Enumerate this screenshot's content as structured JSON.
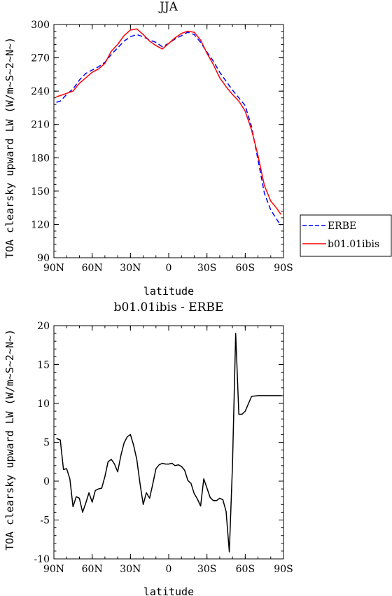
{
  "chart_data": [
    {
      "type": "line",
      "title": "JJA",
      "xlabel": "latitude",
      "ylabel": "TOA clearsky upward LW (W/m~S~2~N~)",
      "xlim": [
        90,
        -90
      ],
      "ylim": [
        90,
        300
      ],
      "x_ticks": [
        {
          "value": 90,
          "label": "90N"
        },
        {
          "value": 60,
          "label": "60N"
        },
        {
          "value": 30,
          "label": "30N"
        },
        {
          "value": 0,
          "label": "0"
        },
        {
          "value": -30,
          "label": "30S"
        },
        {
          "value": -60,
          "label": "60S"
        },
        {
          "value": -90,
          "label": "90S"
        }
      ],
      "y_ticks": [
        {
          "value": 300,
          "label": "300"
        },
        {
          "value": 270,
          "label": "270"
        },
        {
          "value": 240,
          "label": "240"
        },
        {
          "value": 210,
          "label": "210"
        },
        {
          "value": 180,
          "label": "180"
        },
        {
          "value": 150,
          "label": "150"
        },
        {
          "value": 120,
          "label": "120"
        },
        {
          "value": 90,
          "label": "90"
        }
      ],
      "legend_position": "right",
      "series": [
        {
          "name": "ERBE",
          "color": "#0000ff",
          "dash": "dashed",
          "x": [
            88,
            85,
            80,
            75,
            70,
            65,
            60,
            55,
            50,
            45,
            40,
            35,
            30,
            25,
            20,
            15,
            10,
            5,
            0,
            -5,
            -10,
            -15,
            -20,
            -25,
            -30,
            -35,
            -40,
            -45,
            -50,
            -55,
            -60,
            -65,
            -70,
            -75,
            -80,
            -85,
            -88
          ],
          "y": [
            230,
            231,
            237,
            242,
            250,
            256,
            259,
            262,
            266,
            273,
            279,
            285,
            289,
            291,
            289,
            286,
            284,
            280,
            283,
            287,
            290,
            293,
            291,
            284,
            275,
            267,
            257,
            249,
            241,
            234,
            227,
            208,
            178,
            148,
            133,
            124,
            119
          ]
        },
        {
          "name": "b01.01ibis",
          "color": "#ff0000",
          "dash": "solid",
          "x": [
            88,
            85,
            80,
            75,
            70,
            65,
            60,
            55,
            50,
            45,
            40,
            35,
            30,
            25,
            20,
            15,
            10,
            5,
            0,
            -5,
            -10,
            -15,
            -20,
            -25,
            -30,
            -35,
            -40,
            -45,
            -50,
            -55,
            -60,
            -65,
            -70,
            -75,
            -80,
            -85,
            -88
          ],
          "y": [
            235,
            236,
            238,
            240,
            247,
            252,
            257,
            260,
            265,
            276,
            282,
            290,
            295,
            296,
            291,
            285,
            281,
            278,
            283,
            288,
            292,
            294,
            293,
            286,
            274,
            264,
            252,
            244,
            237,
            231,
            222,
            205,
            182,
            155,
            141,
            134,
            129
          ]
        }
      ]
    },
    {
      "type": "line",
      "title": "b01.01ibis - ERBE",
      "xlabel": "latitude",
      "ylabel": "TOA clearsky upward LW (W/m~S~2~N~)",
      "xlim": [
        90,
        -90
      ],
      "ylim": [
        -10,
        20
      ],
      "x_ticks": [
        {
          "value": 90,
          "label": "90N"
        },
        {
          "value": 60,
          "label": "60N"
        },
        {
          "value": 30,
          "label": "30N"
        },
        {
          "value": 0,
          "label": "0"
        },
        {
          "value": -30,
          "label": "30S"
        },
        {
          "value": -60,
          "label": "60S"
        },
        {
          "value": -90,
          "label": "90S"
        }
      ],
      "y_ticks": [
        {
          "value": 20,
          "label": "20"
        },
        {
          "value": 15,
          "label": "15"
        },
        {
          "value": 10,
          "label": "10"
        },
        {
          "value": 5,
          "label": "5"
        },
        {
          "value": 0,
          "label": "0"
        },
        {
          "value": -5,
          "label": "-5"
        },
        {
          "value": -10,
          "label": "-10"
        }
      ],
      "series": [
        {
          "name": "",
          "color": "#000000",
          "dash": "solid",
          "x": [
            88,
            85,
            82.5,
            80,
            77.5,
            75,
            72.5,
            70,
            67.5,
            65,
            62.5,
            60,
            57.5,
            55,
            52.5,
            50,
            47.5,
            45,
            42.5,
            40,
            37.5,
            35,
            32.5,
            30,
            27.5,
            25,
            22.5,
            20,
            17.5,
            15,
            12.5,
            10,
            7.5,
            5,
            2.5,
            0,
            -2.5,
            -5,
            -7.5,
            -10,
            -12.5,
            -15,
            -17.5,
            -20,
            -22.5,
            -25,
            -27.5,
            -30,
            -32.5,
            -35,
            -37.5,
            -40,
            -42.5,
            -45,
            -47.5,
            -50,
            -52.5,
            -55,
            -57.5,
            -60,
            -65,
            -70,
            -75,
            -80,
            -82.5,
            -85,
            -87.5,
            -88.5
          ],
          "y": [
            5.5,
            5.3,
            1.5,
            1.6,
            0.3,
            -3.3,
            -2.0,
            -2.2,
            -4.0,
            -2.8,
            -1.5,
            -2.7,
            -1.2,
            -1.0,
            -0.9,
            0.6,
            2.5,
            2.8,
            2.2,
            1.2,
            3.3,
            4.9,
            5.7,
            6.0,
            4.6,
            2.8,
            -0.3,
            -3.0,
            -1.5,
            -2.2,
            -0.4,
            1.6,
            2.1,
            2.3,
            2.2,
            2.2,
            2.3,
            2.0,
            2.1,
            1.9,
            1.4,
            0.1,
            -0.3,
            -1.6,
            -2.3,
            -3.2,
            0.3,
            -0.9,
            -2.1,
            -2.5,
            -2.5,
            -2.2,
            -2.4,
            -3.9,
            -9.1,
            2.0,
            19.0,
            8.6,
            8.6,
            9.0,
            10.9,
            11.0,
            11.0,
            11.0,
            11.0,
            11.0,
            11.0,
            11.0
          ]
        }
      ]
    }
  ]
}
